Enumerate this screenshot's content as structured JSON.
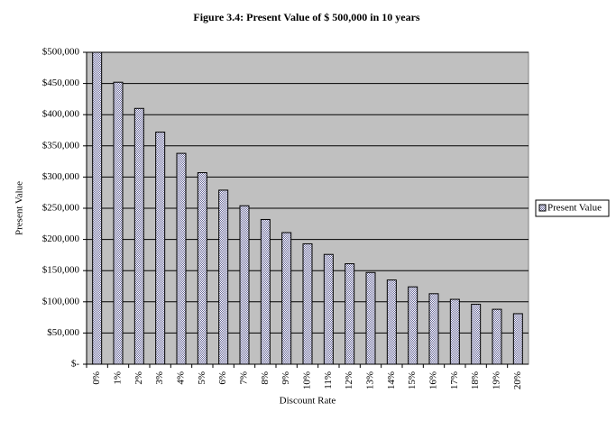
{
  "chart_data": {
    "type": "bar",
    "title": "Figure 3.4: Present Value of $ 500,000 in 10 years",
    "x_label": "Discount Rate",
    "y_label": "Present Value",
    "categories": [
      "0%",
      "1%",
      "2%",
      "3%",
      "4%",
      "5%",
      "6%",
      "7%",
      "8%",
      "9%",
      "10%",
      "11%",
      "12%",
      "13%",
      "14%",
      "15%",
      "16%",
      "17%",
      "18%",
      "19%",
      "20%"
    ],
    "series": [
      {
        "name": "Present Value",
        "color": "#6b6b9c",
        "values": [
          500000,
          452000,
          410000,
          372000,
          338000,
          307000,
          279000,
          254000,
          232000,
          211000,
          193000,
          176000,
          161000,
          147000,
          135000,
          124000,
          113000,
          104000,
          96000,
          88000,
          81000
        ]
      }
    ],
    "ylim": [
      0,
      500000
    ],
    "yticks": [
      {
        "value": 0,
        "label": "$-"
      },
      {
        "value": 50000,
        "label": "$50,000"
      },
      {
        "value": 100000,
        "label": "$100,000"
      },
      {
        "value": 150000,
        "label": "$150,000"
      },
      {
        "value": 200000,
        "label": "$200,000"
      },
      {
        "value": 250000,
        "label": "$250,000"
      },
      {
        "value": 300000,
        "label": "$300,000"
      },
      {
        "value": 350000,
        "label": "$350,000"
      },
      {
        "value": 400000,
        "label": "$400,000"
      },
      {
        "value": 450000,
        "label": "$450,000"
      },
      {
        "value": 500000,
        "label": "$500,000"
      }
    ],
    "grid": true,
    "legend": "right",
    "plot_background": "#c0c0c0"
  }
}
